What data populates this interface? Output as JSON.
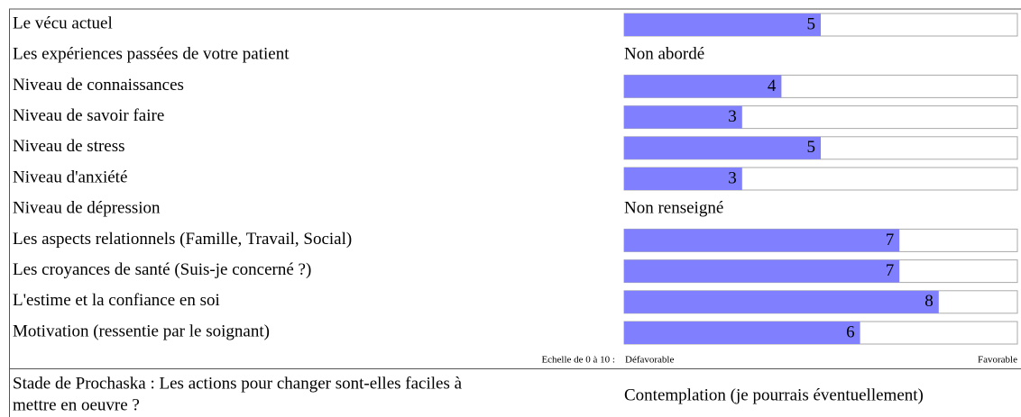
{
  "rows": [
    {
      "label": "Le vécu actuel",
      "value": 5
    },
    {
      "label": "Les expériences passées de votre patient",
      "status": "Non abordé"
    },
    {
      "label": "Niveau de connaissances",
      "value": 4
    },
    {
      "label": "Niveau de savoir faire",
      "value": 3
    },
    {
      "label": "Niveau de stress",
      "value": 5
    },
    {
      "label": "Niveau d'anxiété",
      "value": 3
    },
    {
      "label": "Niveau de dépression",
      "status": "Non renseigné"
    },
    {
      "label": "Les aspects relationnels (Famille, Travail, Social)",
      "value": 7
    },
    {
      "label": "Les croyances de santé (Suis-je concerné ?)",
      "value": 7
    },
    {
      "label": "L'estime et la confiance en soi",
      "value": 8
    },
    {
      "label": "Motivation (ressentie par le soignant)",
      "value": 6
    }
  ],
  "scale": {
    "label": "Echelle de 0 à 10 :",
    "min": 0,
    "max": 10,
    "low": "Défavorable",
    "high": "Favorable"
  },
  "prochaska": {
    "question": [
      "Stade de Prochaska : Les actions pour changer sont-elles faciles à",
      "mettre en oeuvre ?"
    ],
    "answer": "Contemplation (je pourrais éventuellement)"
  }
}
